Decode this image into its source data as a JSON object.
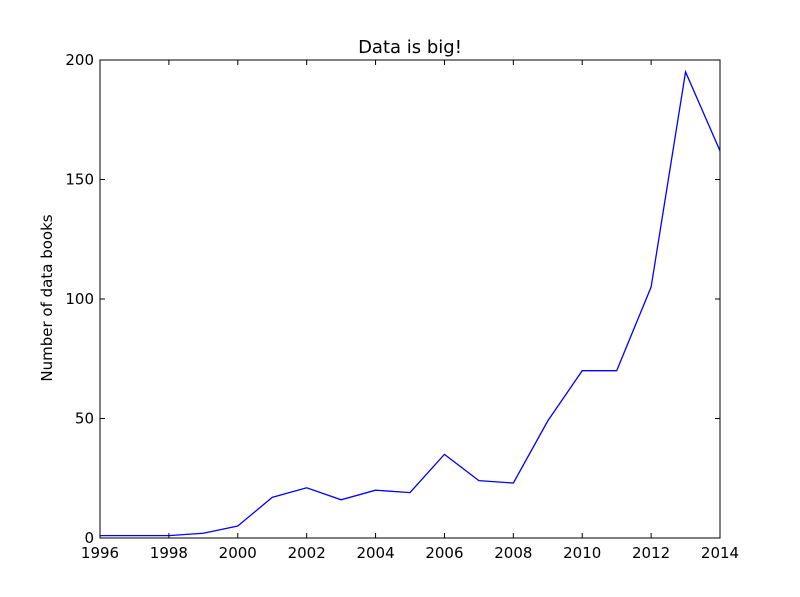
{
  "chart_data": {
    "type": "line",
    "title": "Data is big!",
    "xlabel": "",
    "ylabel": "Number of data books",
    "xlim": [
      1996,
      2014
    ],
    "ylim": [
      0,
      200
    ],
    "xticks": [
      1996,
      1998,
      2000,
      2002,
      2004,
      2006,
      2008,
      2010,
      2012,
      2014
    ],
    "yticks": [
      0,
      50,
      100,
      150,
      200
    ],
    "grid": false,
    "series": [
      {
        "color": "#0000ff",
        "x": [
          1996,
          1997,
          1998,
          1999,
          2000,
          2001,
          2002,
          2003,
          2004,
          2005,
          2006,
          2007,
          2008,
          2009,
          2010,
          2011,
          2012,
          2013,
          2014
        ],
        "y": [
          1,
          1,
          1,
          2,
          5,
          17,
          21,
          16,
          20,
          19,
          35,
          24,
          23,
          49,
          70,
          70,
          105,
          195,
          162
        ]
      }
    ]
  }
}
